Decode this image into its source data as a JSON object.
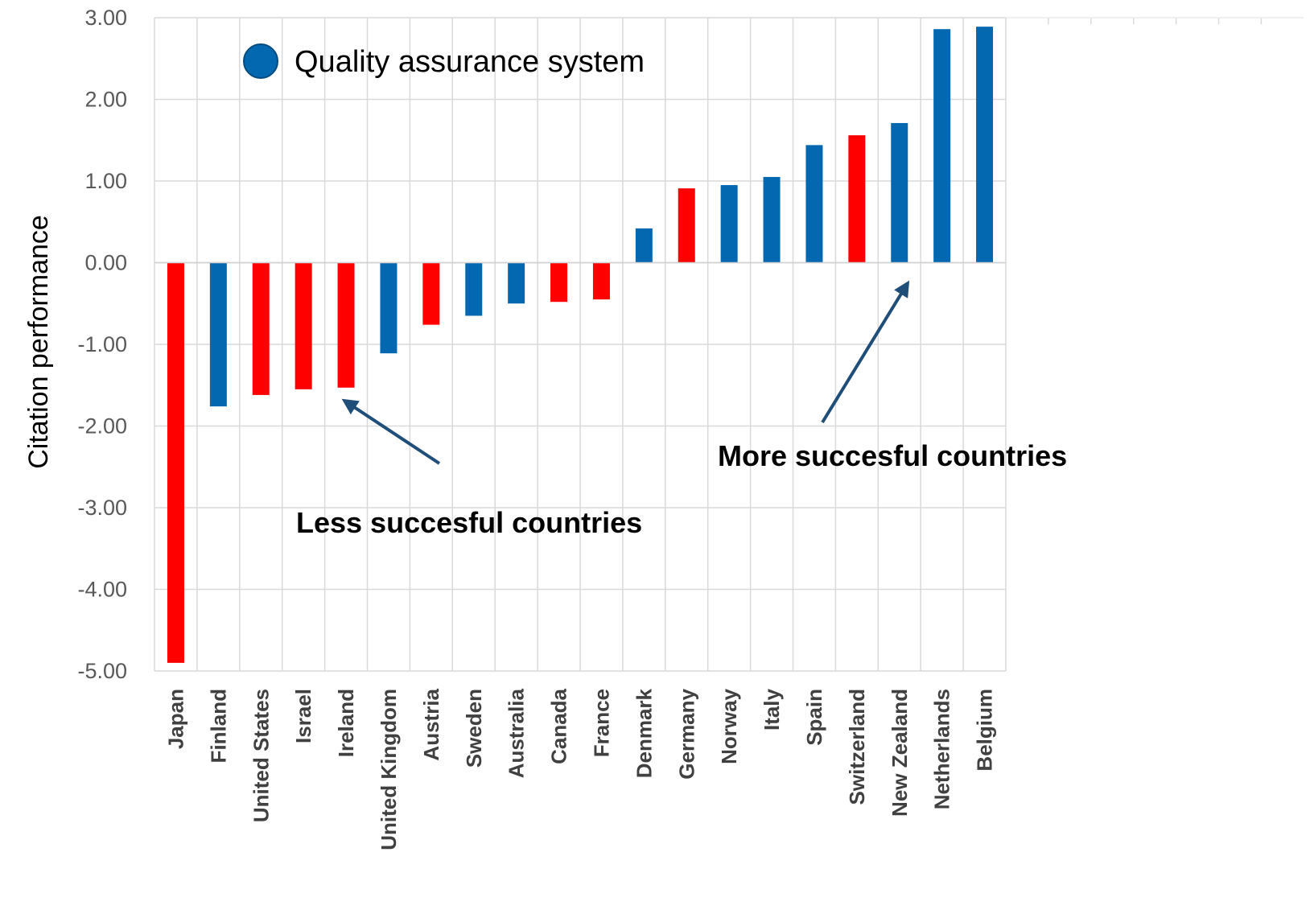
{
  "chart_data": {
    "type": "bar",
    "title": "",
    "xlabel": "",
    "ylabel": "Citation performance",
    "ylim": [
      -5,
      3
    ],
    "yticks": [
      "3.00",
      "2.00",
      "1.00",
      "0.00",
      "-1.00",
      "-2.00",
      "-3.00",
      "-4.00",
      "-5.00"
    ],
    "grid": true,
    "categories": [
      "Japan",
      "Finland",
      "United States",
      "Israel",
      "Ireland",
      "United Kingdom",
      "Austria",
      "Sweden",
      "Australia",
      "Canada",
      "France",
      "Denmark",
      "Germany",
      "Norway",
      "Italy",
      "Spain",
      "Switzerland",
      "New Zealand",
      "Netherlands",
      "Belgium"
    ],
    "values": [
      -4.9,
      -1.76,
      -1.62,
      -1.55,
      -1.53,
      -1.11,
      -0.76,
      -0.65,
      -0.5,
      -0.48,
      -0.45,
      0.42,
      0.91,
      0.95,
      1.05,
      1.44,
      1.56,
      1.71,
      2.86,
      2.89
    ],
    "quality_assurance_system": [
      false,
      true,
      false,
      false,
      false,
      true,
      false,
      true,
      true,
      false,
      false,
      true,
      false,
      true,
      true,
      true,
      false,
      true,
      true,
      true
    ],
    "colors": {
      "with_system": "#0468B1",
      "without_system": "#FF0000"
    },
    "legend": {
      "label": "Quality assurance system",
      "color": "#0468B1",
      "position": "top-left"
    },
    "annotations": [
      {
        "text": "Less succesful countries",
        "points_to": "Ireland"
      },
      {
        "text": "More succesful countries",
        "points_to": "New Zealand"
      }
    ],
    "arrow_color": "#1F4E79"
  }
}
